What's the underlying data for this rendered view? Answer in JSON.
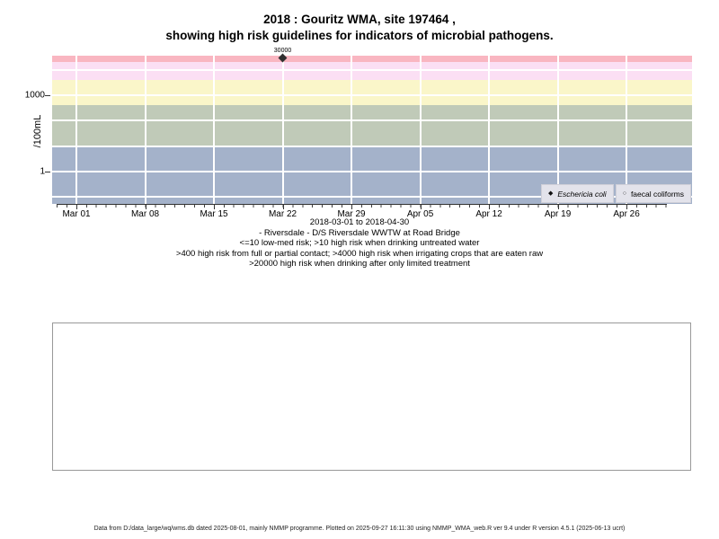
{
  "title": {
    "line1": "2018 : Gouritz WMA, site 197464 ,",
    "line2": "showing high risk guidelines for indicators of microbial pathogens."
  },
  "chart_data": {
    "type": "scatter",
    "title": "2018 : Gouritz WMA, site 197464 , showing high risk guidelines for indicators of microbial pathogens.",
    "ylabel": "/100mL",
    "y_scale": "log10",
    "ylim": [
      0.05,
      40000
    ],
    "x_range": [
      "2018-03-01",
      "2018-04-30"
    ],
    "x_tick_labels": [
      "Mar 01",
      "Mar 08",
      "Mar 15",
      "Mar 22",
      "Mar 29",
      "Apr 05",
      "Apr 12",
      "Apr 19",
      "Apr 26"
    ],
    "x_tick_days": [
      0,
      7,
      14,
      21,
      28,
      35,
      42,
      49,
      56
    ],
    "y_ticks": [
      {
        "value": 1000,
        "label": "1000"
      },
      {
        "value": 1,
        "label": "1"
      }
    ],
    "grid": true,
    "grid_color": "#ffffff",
    "h_gridline_values": [
      0.1,
      1,
      10,
      100,
      1000,
      10000
    ],
    "risk_bands": [
      {
        "label": "<=10 low-med risk",
        "from": 0.05,
        "to": 10,
        "color": "#a4b2ca"
      },
      {
        "label": ">10 high risk when drinking untreated water",
        "from": 10,
        "to": 400,
        "color": "#c0cab8"
      },
      {
        "label": ">400 high risk from full or partial contact",
        "from": 400,
        "to": 4000,
        "color": "#faf6c9"
      },
      {
        "label": ">4000 high risk when irrigating crops that are eaten raw",
        "from": 4000,
        "to": 20000,
        "color": "#fbdff4"
      },
      {
        "label": ">20000 high risk when drinking after only limited treatment",
        "from": 20000,
        "to": 40000,
        "color": "#f9b6c1"
      }
    ],
    "series": [
      {
        "name": "Eschericia coli",
        "marker": "filled-diamond",
        "points": [
          {
            "x": "2018-03-22",
            "y": 30000,
            "label": "30000"
          }
        ]
      },
      {
        "name": "faecal coliforms",
        "marker": "open-circle",
        "points": []
      }
    ],
    "legend_position": "bottom-right"
  },
  "legend": {
    "item1_marker": "◆",
    "item1_label": "Eschericia coli",
    "item2_marker": "○",
    "item2_label": "faecal coliforms"
  },
  "axis_titles": {
    "y": "/100mL"
  },
  "subtitle": {
    "lines": [
      "2018-03-01 to 2018-04-30",
      "- Riversdale - D/S Riversdale WWTW at Road Bridge",
      "<=10 low-med risk; >10 high risk when drinking untreated water",
      ">400 high risk from full or partial contact; >4000 high risk when irrigating crops that are eaten raw",
      ">20000 high risk when drinking after only limited treatment"
    ]
  },
  "footer": {
    "text": "Data from D:/data_large/wq/wms.db dated 2025-08-01, mainly NMMP programme. Plotted on 2025-09-27 16:11:30 using NMMP_WMA_web.R ver 9.4 under R version 4.5.1 (2025-06-13 ucrt)"
  }
}
